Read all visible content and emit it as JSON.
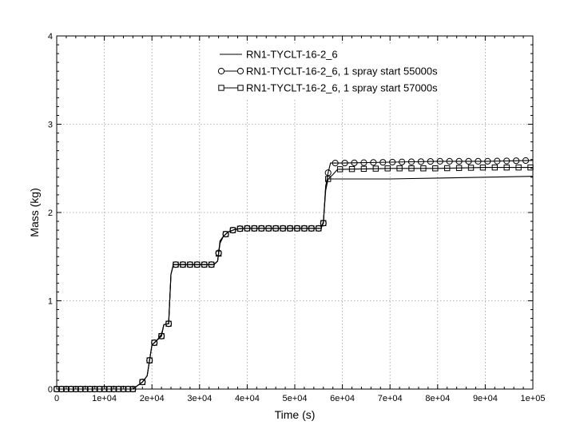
{
  "chart_data": {
    "type": "line",
    "title": "",
    "xlabel": "Time (s)",
    "ylabel": "Mass (kg)",
    "xlim": [
      0,
      100000
    ],
    "ylim": [
      0,
      4
    ],
    "grid": true,
    "legend_position": "top-center",
    "x_ticks": [
      {
        "value": 0,
        "label": "0"
      },
      {
        "value": 10000,
        "label": "1e+04"
      },
      {
        "value": 20000,
        "label": "2e+04"
      },
      {
        "value": 30000,
        "label": "3e+04"
      },
      {
        "value": 40000,
        "label": "4e+04"
      },
      {
        "value": 50000,
        "label": "5e+04"
      },
      {
        "value": 60000,
        "label": "6e+04"
      },
      {
        "value": 70000,
        "label": "7e+04"
      },
      {
        "value": 80000,
        "label": "8e+04"
      },
      {
        "value": 90000,
        "label": "9e+04"
      },
      {
        "value": 100000,
        "label": "1e+05"
      }
    ],
    "y_ticks": [
      {
        "value": 0,
        "label": "0"
      },
      {
        "value": 1,
        "label": "1"
      },
      {
        "value": 2,
        "label": "2"
      },
      {
        "value": 3,
        "label": "3"
      },
      {
        "value": 4,
        "label": "4"
      }
    ],
    "series": [
      {
        "name": "RN1-TYCLT-16-2_6",
        "marker": "none",
        "points": [
          [
            0,
            0
          ],
          [
            16000,
            0
          ],
          [
            17000,
            0.04
          ],
          [
            18000,
            0.08
          ],
          [
            19000,
            0.15
          ],
          [
            20000,
            0.5
          ],
          [
            21000,
            0.55
          ],
          [
            22000,
            0.62
          ],
          [
            22500,
            0.73
          ],
          [
            23500,
            0.74
          ],
          [
            24000,
            1.3
          ],
          [
            24500,
            1.41
          ],
          [
            26000,
            1.41
          ],
          [
            30000,
            1.41
          ],
          [
            33000,
            1.41
          ],
          [
            33800,
            1.45
          ],
          [
            34300,
            1.65
          ],
          [
            35000,
            1.73
          ],
          [
            36000,
            1.78
          ],
          [
            37500,
            1.81
          ],
          [
            39000,
            1.82
          ],
          [
            42000,
            1.82
          ],
          [
            48000,
            1.82
          ],
          [
            55500,
            1.82
          ],
          [
            56000,
            1.9
          ],
          [
            56500,
            2.25
          ],
          [
            57000,
            2.38
          ],
          [
            60000,
            2.38
          ],
          [
            70000,
            2.38
          ],
          [
            80000,
            2.39
          ],
          [
            90000,
            2.4
          ],
          [
            100000,
            2.41
          ]
        ]
      },
      {
        "name": "RN1-TYCLT-16-2_6, 1 spray start 55000s",
        "marker": "circle",
        "points": [
          [
            0,
            0
          ],
          [
            16000,
            0
          ],
          [
            17000,
            0.04
          ],
          [
            18000,
            0.08
          ],
          [
            19000,
            0.15
          ],
          [
            20000,
            0.5
          ],
          [
            21000,
            0.55
          ],
          [
            22000,
            0.6
          ],
          [
            22500,
            0.73
          ],
          [
            23500,
            0.74
          ],
          [
            24000,
            1.3
          ],
          [
            24500,
            1.41
          ],
          [
            26000,
            1.41
          ],
          [
            30000,
            1.41
          ],
          [
            33000,
            1.41
          ],
          [
            33800,
            1.45
          ],
          [
            34300,
            1.68
          ],
          [
            35000,
            1.73
          ],
          [
            36000,
            1.78
          ],
          [
            37500,
            1.81
          ],
          [
            39000,
            1.82
          ],
          [
            42000,
            1.82
          ],
          [
            48000,
            1.82
          ],
          [
            55500,
            1.82
          ],
          [
            56000,
            1.88
          ],
          [
            56500,
            2.3
          ],
          [
            57000,
            2.45
          ],
          [
            57500,
            2.56
          ],
          [
            60000,
            2.56
          ],
          [
            70000,
            2.57
          ],
          [
            80000,
            2.58
          ],
          [
            90000,
            2.58
          ],
          [
            100000,
            2.59
          ]
        ]
      },
      {
        "name": "RN1-TYCLT-16-2_6, 1 spray start 57000s",
        "marker": "square",
        "points": [
          [
            0,
            0
          ],
          [
            16000,
            0
          ],
          [
            17000,
            0.04
          ],
          [
            18000,
            0.08
          ],
          [
            19000,
            0.15
          ],
          [
            20000,
            0.5
          ],
          [
            21000,
            0.55
          ],
          [
            22000,
            0.6
          ],
          [
            22500,
            0.73
          ],
          [
            23500,
            0.74
          ],
          [
            24000,
            1.3
          ],
          [
            24500,
            1.41
          ],
          [
            26000,
            1.41
          ],
          [
            30000,
            1.41
          ],
          [
            33000,
            1.41
          ],
          [
            33800,
            1.45
          ],
          [
            34300,
            1.66
          ],
          [
            35000,
            1.73
          ],
          [
            36000,
            1.78
          ],
          [
            37500,
            1.81
          ],
          [
            39000,
            1.82
          ],
          [
            42000,
            1.82
          ],
          [
            48000,
            1.82
          ],
          [
            55500,
            1.82
          ],
          [
            56000,
            1.88
          ],
          [
            56500,
            2.3
          ],
          [
            57000,
            2.38
          ],
          [
            58000,
            2.43
          ],
          [
            59000,
            2.49
          ],
          [
            60000,
            2.49
          ],
          [
            70000,
            2.5
          ],
          [
            80000,
            2.5
          ],
          [
            90000,
            2.51
          ],
          [
            100000,
            2.51
          ]
        ]
      }
    ],
    "markers": {
      "circle_x": [
        0,
        1000,
        2000,
        3000,
        4000,
        5000,
        6000,
        7000,
        8000,
        9000,
        10000,
        11000,
        12000,
        13000,
        14000,
        15000,
        16000,
        18000,
        19500,
        20500,
        22000,
        23500,
        25000,
        26500,
        28000,
        29500,
        31000,
        32500,
        34000,
        35500,
        37000,
        38500,
        40000,
        41500,
        43000,
        44500,
        46000,
        47500,
        49000,
        50500,
        52000,
        53500,
        55000,
        56000,
        57000,
        58500,
        60500,
        62500,
        64500,
        66500,
        68500,
        70500,
        72500,
        74500,
        76500,
        78500,
        80500,
        82500,
        84500,
        86500,
        88500,
        90500,
        92500,
        94500,
        96500,
        98500
      ],
      "square_x": [
        0,
        1000,
        2000,
        3000,
        4000,
        5000,
        6000,
        7000,
        8000,
        9000,
        10000,
        11000,
        12000,
        13000,
        14000,
        15000,
        16000,
        18000,
        19500,
        20500,
        22000,
        23500,
        25000,
        26500,
        28000,
        29500,
        31000,
        32500,
        34000,
        35500,
        37000,
        38500,
        40000,
        41500,
        43000,
        44500,
        46000,
        47500,
        49000,
        50500,
        52000,
        53500,
        55000,
        56000,
        57000,
        59500,
        62000,
        64500,
        67000,
        69500,
        72000,
        74500,
        77000,
        79500,
        82000,
        84500,
        87000,
        89500,
        92000,
        94500,
        97000,
        99500
      ]
    }
  }
}
